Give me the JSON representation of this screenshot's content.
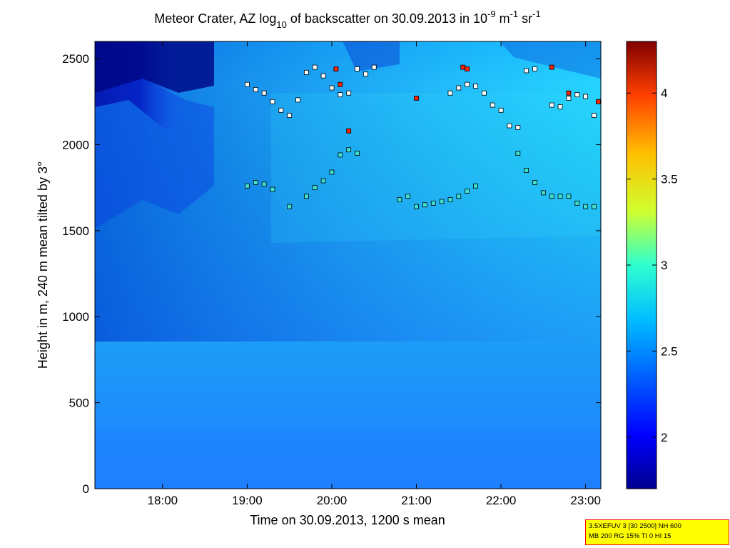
{
  "chart_data": {
    "type": "heatmap",
    "title": {
      "prefix": "Meteor Crater, AZ log",
      "prefix_sub": "10",
      "middle": " of backscatter on 30.09.2013 in 10",
      "exp1": "-9",
      "m_text": " m",
      "exp2": "-1",
      "sr_text": " sr",
      "exp3": "-1"
    },
    "xlabel": "Time on 30.09.2013, 1200 s mean",
    "ylabel": "Height in m, 240 m mean tilted by 3°",
    "xlim_hours": [
      17.2,
      23.18
    ],
    "ylim": [
      0,
      2600
    ],
    "xticks": [
      {
        "label": "18:00",
        "value": 18
      },
      {
        "label": "19:00",
        "value": 19
      },
      {
        "label": "20:00",
        "value": 20
      },
      {
        "label": "21:00",
        "value": 21
      },
      {
        "label": "22:00",
        "value": 22
      },
      {
        "label": "23:00",
        "value": 23
      }
    ],
    "yticks": [
      0,
      500,
      1000,
      1500,
      2000,
      2500
    ],
    "colorbar": {
      "range": [
        1.7,
        4.3
      ],
      "ticks": [
        2,
        2.5,
        3,
        3.5,
        4
      ],
      "colormap": "jet"
    },
    "markers": [
      {
        "name": "layer1-top",
        "color_level": "white",
        "points": [
          [
            19.0,
            2350
          ],
          [
            19.1,
            2320
          ],
          [
            19.2,
            2300
          ],
          [
            19.3,
            2250
          ],
          [
            19.4,
            2200
          ],
          [
            19.5,
            2170
          ],
          [
            19.6,
            2260
          ],
          [
            19.7,
            2420
          ],
          [
            19.8,
            2450
          ],
          [
            19.9,
            2400
          ],
          [
            20.0,
            2330
          ],
          [
            20.1,
            2290
          ],
          [
            20.2,
            2300
          ],
          [
            20.3,
            2440
          ],
          [
            20.4,
            2410
          ],
          [
            20.5,
            2450
          ],
          [
            21.4,
            2300
          ],
          [
            21.5,
            2330
          ],
          [
            21.6,
            2350
          ],
          [
            21.7,
            2340
          ],
          [
            21.8,
            2300
          ],
          [
            21.9,
            2230
          ],
          [
            22.0,
            2200
          ],
          [
            22.1,
            2110
          ],
          [
            22.2,
            2100
          ],
          [
            22.3,
            2430
          ],
          [
            22.4,
            2440
          ],
          [
            22.6,
            2230
          ],
          [
            22.7,
            2220
          ],
          [
            22.8,
            2270
          ],
          [
            22.9,
            2290
          ],
          [
            23.0,
            2280
          ],
          [
            23.1,
            2170
          ]
        ]
      },
      {
        "name": "layer2-mid",
        "color_level": "cyan",
        "points": [
          [
            19.0,
            1760
          ],
          [
            19.1,
            1780
          ],
          [
            19.2,
            1770
          ],
          [
            19.3,
            1740
          ],
          [
            19.5,
            1640
          ],
          [
            19.7,
            1700
          ],
          [
            19.8,
            1750
          ],
          [
            19.9,
            1790
          ],
          [
            20.0,
            1840
          ],
          [
            20.1,
            1940
          ],
          [
            20.2,
            1970
          ],
          [
            20.3,
            1950
          ],
          [
            20.8,
            1680
          ],
          [
            20.9,
            1700
          ],
          [
            21.0,
            1640
          ],
          [
            21.1,
            1650
          ],
          [
            21.2,
            1660
          ],
          [
            21.3,
            1670
          ],
          [
            21.4,
            1680
          ],
          [
            21.5,
            1700
          ],
          [
            21.6,
            1730
          ],
          [
            21.7,
            1760
          ],
          [
            22.2,
            1950
          ],
          [
            22.3,
            1850
          ],
          [
            22.4,
            1780
          ],
          [
            22.5,
            1720
          ],
          [
            22.6,
            1700
          ],
          [
            22.7,
            1700
          ],
          [
            22.8,
            1700
          ],
          [
            22.9,
            1660
          ],
          [
            23.0,
            1640
          ],
          [
            23.1,
            1640
          ]
        ]
      },
      {
        "name": "high-values",
        "color_level": "red",
        "points": [
          [
            20.05,
            2440
          ],
          [
            20.1,
            2350
          ],
          [
            20.2,
            2080
          ],
          [
            21.0,
            2270
          ],
          [
            21.55,
            2450
          ],
          [
            21.6,
            2440
          ],
          [
            22.6,
            2450
          ],
          [
            22.8,
            2300
          ],
          [
            23.15,
            2250
          ]
        ]
      }
    ]
  },
  "info_box": {
    "line1": "3.5XEFUV 3 [30 2500] NH 600",
    "line2": "MB 200 RG 15% TI 0 HI 15"
  },
  "colors": {
    "plot_bg_low": "#1e8aff",
    "plot_bg_high": "#1dd6ff",
    "dark_top": "#00008b",
    "marker_white": "#ffffff",
    "marker_cyan": "#40e0d0",
    "marker_red": "#ff2000"
  }
}
